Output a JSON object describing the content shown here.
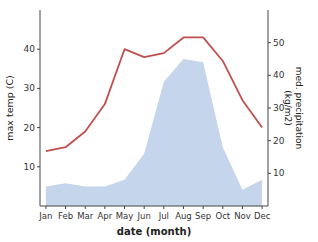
{
  "chart_data": {
    "type": "line",
    "categories": [
      "Jan",
      "Feb",
      "Mar",
      "Apr",
      "May",
      "Jun",
      "Jul",
      "Aug",
      "Sep",
      "Oct",
      "Nov",
      "Dec"
    ],
    "series": [
      {
        "type": "area",
        "axis": "y2",
        "color": "#c5d5eb",
        "values": [
          6,
          7,
          6,
          6,
          8,
          16,
          38,
          45,
          44,
          18,
          5,
          8
        ]
      },
      {
        "type": "line",
        "color": "#c0504d",
        "values": [
          14,
          15,
          19,
          26,
          40,
          38,
          39,
          43,
          43,
          37,
          27,
          20
        ]
      }
    ],
    "xlabel": "date (month)",
    "ylabel": "max temp (C)",
    "y2label": "med. precipitation\n(kg/m2)",
    "ylim": [
      0,
      50
    ],
    "yticks": [
      10,
      20,
      30,
      40
    ],
    "y2lim": [
      0,
      60
    ],
    "y2ticks": [
      10,
      20,
      30,
      40,
      50
    ],
    "grid": false
  }
}
